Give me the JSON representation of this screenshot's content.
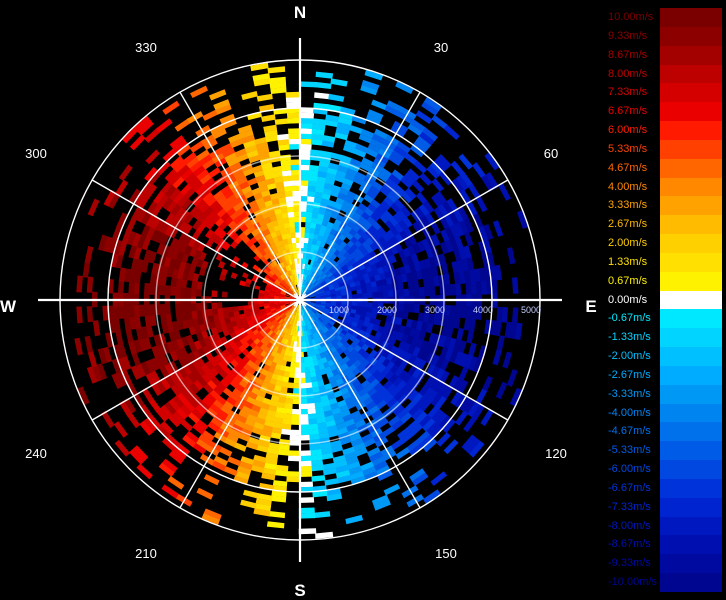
{
  "compass": {
    "north": "N",
    "south": "S",
    "east": "E",
    "west": "W"
  },
  "azimuth_labels": [
    "30",
    "60",
    "120",
    "150",
    "210",
    "240",
    "300",
    "330"
  ],
  "range_labels": [
    "1000",
    "2000",
    "3000",
    "4000",
    "5000"
  ],
  "legend": {
    "entries": [
      {
        "label": "10.00m/s",
        "color": "#7a0000"
      },
      {
        "label": "9.33m/s",
        "color": "#8c0000"
      },
      {
        "label": "8.67m/s",
        "color": "#a30000"
      },
      {
        "label": "8.00m/s",
        "color": "#bd0000"
      },
      {
        "label": "7.33m/s",
        "color": "#d40000"
      },
      {
        "label": "6.67m/s",
        "color": "#eb0000"
      },
      {
        "label": "6.00m/s",
        "color": "#ff1a00"
      },
      {
        "label": "5.33m/s",
        "color": "#ff4000"
      },
      {
        "label": "4.67m/s",
        "color": "#ff6600"
      },
      {
        "label": "4.00m/s",
        "color": "#ff8800"
      },
      {
        "label": "3.33m/s",
        "color": "#ffa200"
      },
      {
        "label": "2.67m/s",
        "color": "#ffbb00"
      },
      {
        "label": "2.00m/s",
        "color": "#ffd000"
      },
      {
        "label": "1.33m/s",
        "color": "#ffe000"
      },
      {
        "label": "0.67m/s",
        "color": "#fff200"
      },
      {
        "label": "0.00m/s",
        "color": "#ffffff"
      },
      {
        "label": "-0.67m/s",
        "color": "#00e8ff"
      },
      {
        "label": "-1.33m/s",
        "color": "#00d4ff"
      },
      {
        "label": "-2.00m/s",
        "color": "#00c0ff"
      },
      {
        "label": "-2.67m/s",
        "color": "#00acff"
      },
      {
        "label": "-3.33m/s",
        "color": "#0098f5"
      },
      {
        "label": "-4.00m/s",
        "color": "#0084f0"
      },
      {
        "label": "-4.67m/s",
        "color": "#0070eb"
      },
      {
        "label": "-5.33m/s",
        "color": "#005ce6"
      },
      {
        "label": "-6.00m/s",
        "color": "#0048e0"
      },
      {
        "label": "-6.67m/s",
        "color": "#0034da"
      },
      {
        "label": "-7.33m/s",
        "color": "#0024d0"
      },
      {
        "label": "-8.00m/s",
        "color": "#0018c0"
      },
      {
        "label": "-8.67m/s",
        "color": "#0010b0"
      },
      {
        "label": "-9.33m/s",
        "color": "#000aa0"
      },
      {
        "label": "-10.00m/s",
        "color": "#000690"
      }
    ]
  }
}
